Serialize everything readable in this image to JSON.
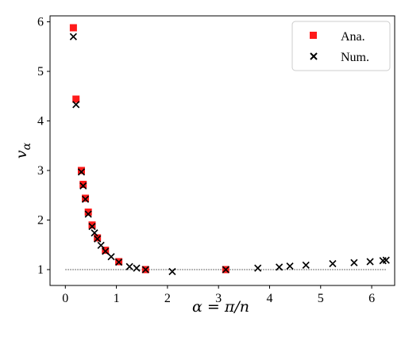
{
  "chart_data": {
    "type": "scatter",
    "xlabel": "α = π/n",
    "ylabel": "v",
    "ylabel_subscript": "α",
    "xlim": [
      -0.3,
      6.45
    ],
    "ylim": [
      0.68,
      6.12
    ],
    "xticks": [
      0,
      1,
      2,
      3,
      4,
      5,
      6
    ],
    "yticks": [
      1,
      2,
      3,
      4,
      5,
      6
    ],
    "grid": false,
    "legend_position": "top-right",
    "reference_line": {
      "y": 1,
      "x_range": [
        0,
        6.2832
      ],
      "style": "dotted",
      "color": "#000000"
    },
    "series": [
      {
        "name": "Ana.",
        "marker": "square",
        "color": "#ff1a1a",
        "x": [
          0.157,
          0.209,
          0.314,
          0.349,
          0.393,
          0.449,
          0.524,
          0.628,
          0.785,
          1.047,
          1.571,
          3.142
        ],
        "y": [
          5.88,
          4.44,
          3.0,
          2.72,
          2.44,
          2.16,
          1.9,
          1.64,
          1.39,
          1.16,
          1.0,
          1.0
        ]
      },
      {
        "name": "Num.",
        "marker": "x",
        "color": "#000000",
        "x": [
          0.157,
          0.209,
          0.314,
          0.349,
          0.393,
          0.449,
          0.524,
          0.571,
          0.628,
          0.698,
          0.785,
          0.898,
          1.047,
          1.257,
          1.396,
          1.571,
          2.094,
          3.142,
          3.77,
          4.189,
          4.398,
          4.712,
          5.236,
          5.655,
          5.969,
          6.22,
          6.283
        ],
        "y": [
          5.7,
          4.33,
          2.97,
          2.69,
          2.42,
          2.12,
          1.87,
          1.74,
          1.62,
          1.49,
          1.37,
          1.26,
          1.15,
          1.06,
          1.03,
          1.0,
          0.96,
          1.0,
          1.03,
          1.05,
          1.07,
          1.09,
          1.12,
          1.14,
          1.16,
          1.18,
          1.19
        ]
      }
    ]
  }
}
